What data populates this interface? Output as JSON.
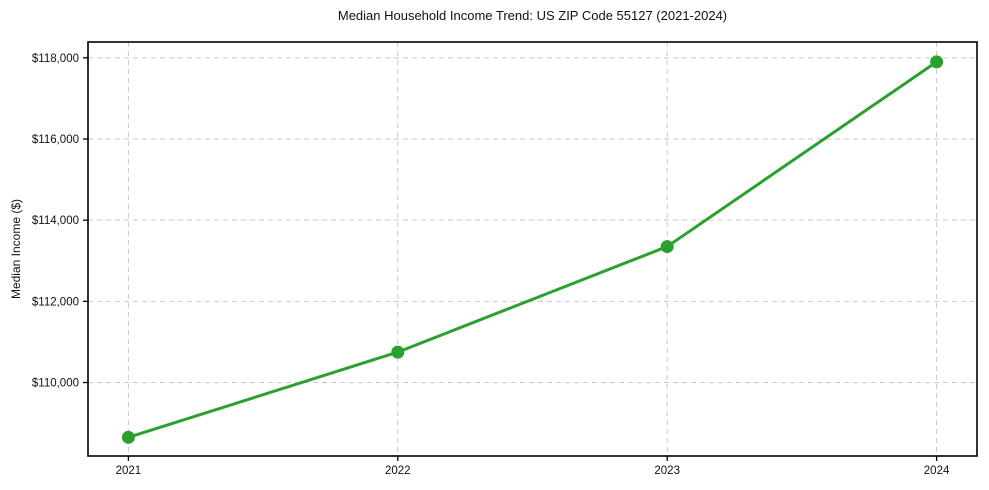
{
  "chart_data": {
    "type": "line",
    "title": "Median Household Income Trend: US ZIP Code 55127 (2021-2024)",
    "xlabel": "",
    "ylabel": "Median Income ($)",
    "x": [
      2021,
      2022,
      2023,
      2024
    ],
    "xtick_labels": [
      "2021",
      "2022",
      "2023",
      "2024"
    ],
    "series": [
      {
        "name": "Median Household Income",
        "values": [
          108650,
          110750,
          113350,
          117900
        ]
      }
    ],
    "yticks": [
      110000,
      112000,
      114000,
      116000,
      118000
    ],
    "ytick_labels": [
      "$110,000",
      "$112,000",
      "$114,000",
      "$116,000",
      "$118,000"
    ],
    "xlim": [
      2020.85,
      2024.15
    ],
    "ylim": [
      108190,
      118390
    ],
    "grid": true,
    "grid_style": "dashed",
    "legend": "none",
    "line_color": "#2ca02c",
    "marker": "circle",
    "marker_size": 6.5,
    "background_color": "#ffffff"
  }
}
